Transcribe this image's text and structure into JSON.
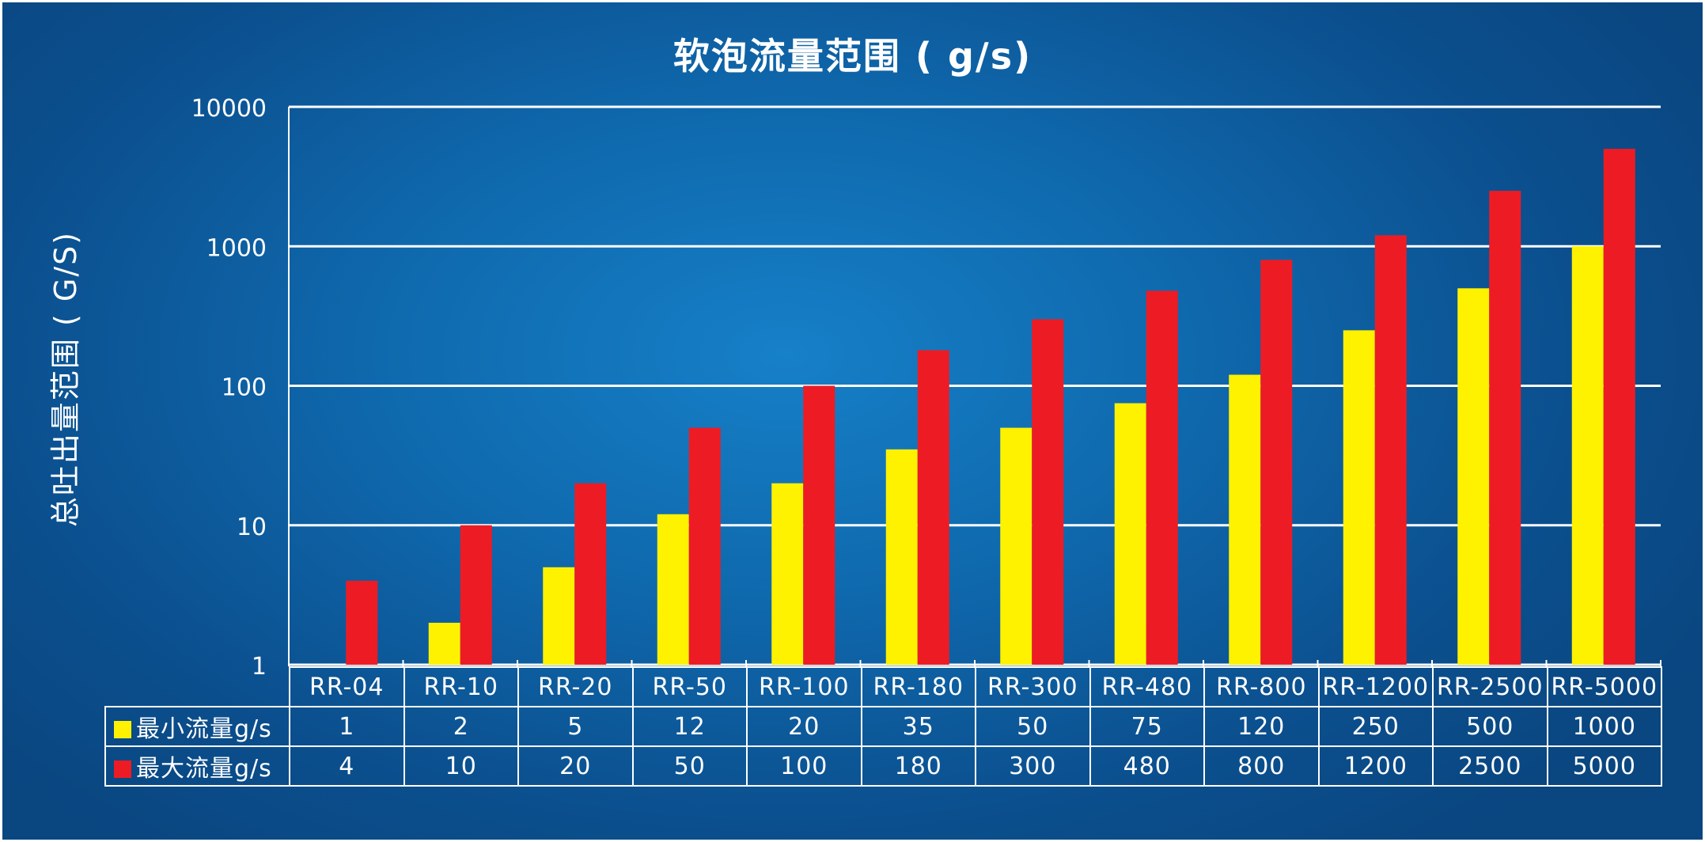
{
  "chart_data": {
    "type": "bar",
    "title": "软泡流量范围 ( g/s)",
    "ylabel": "总吐出量范围 ( G/S)",
    "xlabel": "",
    "yscale": "log",
    "ylim": [
      1,
      10000
    ],
    "yticks": [
      "1",
      "10",
      "100",
      "1000",
      "10000"
    ],
    "grid": true,
    "legend": "table-below",
    "categories": [
      "RR-04",
      "RR-10",
      "RR-20",
      "RR-50",
      "RR-100",
      "RR-180",
      "RR-300",
      "RR-480",
      "RR-800",
      "RR-1200",
      "RR-2500",
      "RR-5000"
    ],
    "series": [
      {
        "name": "最小流量g/s",
        "color": "#fff200",
        "values": [
          1,
          2,
          5,
          12,
          20,
          35,
          50,
          75,
          120,
          250,
          500,
          1000
        ]
      },
      {
        "name": "最大流量g/s",
        "color": "#ed1c24",
        "values": [
          4,
          10,
          20,
          50,
          100,
          180,
          300,
          480,
          800,
          1200,
          2500,
          5000
        ]
      }
    ]
  }
}
